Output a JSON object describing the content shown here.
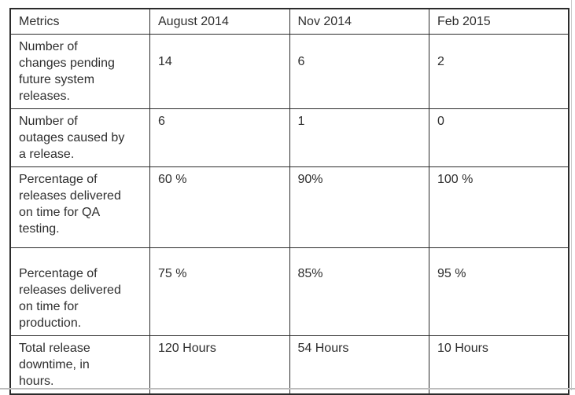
{
  "colors": {
    "table_border": "#2b2b2b",
    "text": "#2e2e2e",
    "image_edge": "#c9c9c9",
    "background": "#ffffff"
  },
  "chart_data": {
    "type": "table",
    "columns": [
      "Metrics",
      "August 2014",
      "Nov 2014",
      "Feb 2015"
    ],
    "rows": [
      [
        "Number of\nchanges pending\nfuture system\nreleases.",
        "14",
        "6",
        "2"
      ],
      [
        "Number of\noutages caused by\na release.",
        "6",
        "1",
        "0"
      ],
      [
        "Percentage of\nreleases delivered\non time for QA\ntesting.",
        "60 %",
        "90%",
        "100 %"
      ],
      [
        "Percentage of\nreleases delivered\non time for\nproduction.",
        "75 %",
        "85%",
        "95 %"
      ],
      [
        "Total release\ndowntime, in\nhours.",
        "120 Hours",
        "54 Hours",
        "10 Hours"
      ]
    ]
  }
}
